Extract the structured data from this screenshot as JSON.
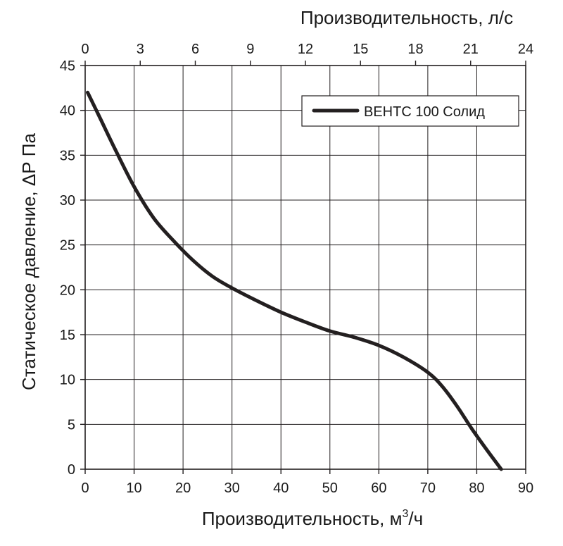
{
  "chart_data": {
    "type": "line",
    "title": "",
    "xlabel_prefix": "Производительность, м",
    "xlabel_sup": "3",
    "xlabel_suffix": "/ч",
    "x2label": "Производительность, л/с",
    "ylabel": "Статическое давление, ΔР Па",
    "xlim": [
      0,
      90
    ],
    "x2lim": [
      0,
      24
    ],
    "ylim": [
      0,
      45
    ],
    "xticks": [
      0,
      10,
      20,
      30,
      40,
      50,
      60,
      70,
      80,
      90
    ],
    "x2ticks": [
      0,
      3,
      6,
      9,
      12,
      15,
      18,
      21,
      24
    ],
    "yticks": [
      0,
      5,
      10,
      15,
      20,
      25,
      30,
      35,
      40,
      45
    ],
    "grid": true,
    "legend_position": "top-right",
    "series": [
      {
        "name": "ВЕНТС 100 Солид",
        "color": "#231f20",
        "x": [
          0.5,
          3,
          6,
          10,
          14,
          18,
          22,
          26,
          30,
          35,
          40,
          45,
          50,
          55,
          60,
          65,
          70,
          73,
          76,
          79,
          82,
          85
        ],
        "y": [
          42,
          39.2,
          35.8,
          31.5,
          28,
          25.5,
          23.3,
          21.5,
          20.2,
          18.8,
          17.5,
          16.4,
          15.4,
          14.7,
          13.8,
          12.5,
          10.8,
          9.2,
          7,
          4.5,
          2.2,
          0
        ]
      }
    ]
  }
}
